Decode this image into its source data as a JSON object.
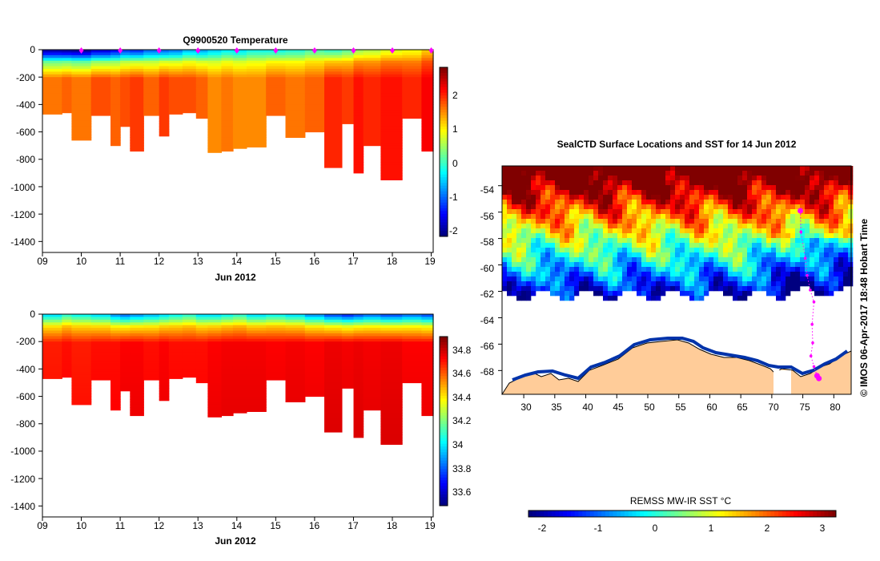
{
  "chart_data": [
    {
      "type": "heatmap",
      "title": "Q9900520  Temperature",
      "xlabel": "Jun 2012",
      "x_ticks": [
        "09",
        "10",
        "11",
        "12",
        "13",
        "14",
        "15",
        "16",
        "17",
        "18",
        "19"
      ],
      "y_ticks": [
        "0",
        "-200",
        "-400",
        "-600",
        "-800",
        "-1000",
        "-1200",
        "-1400"
      ],
      "ylim": [
        -1480,
        0
      ],
      "xlim": [
        9,
        19.05
      ],
      "colorbar_ticks": [
        "-2",
        "-1",
        "0",
        "1",
        "2"
      ],
      "colorbar_range": [
        -2.2,
        2.8
      ],
      "profile_times": [
        9.0,
        9.5,
        9.75,
        10.25,
        10.75,
        11.0,
        11.25,
        11.6,
        12.0,
        12.25,
        12.6,
        12.95,
        13.25,
        13.6,
        13.9,
        14.25,
        14.75,
        15.25,
        15.75,
        16.25,
        16.7,
        17.0,
        17.25,
        17.7,
        18.25,
        18.75
      ],
      "profile_max_depth": [
        -470,
        -460,
        -660,
        -480,
        -700,
        -560,
        -740,
        -480,
        -630,
        -470,
        -460,
        -500,
        -750,
        -740,
        -720,
        -710,
        -480,
        -640,
        -600,
        -860,
        -540,
        -900,
        -700,
        -950,
        -500,
        -740
      ],
      "surface_temp": [
        -1.9,
        -1.95,
        -2.0,
        -1.7,
        -1.5,
        -1.2,
        -1.3,
        -1.0,
        -1.0,
        -0.9,
        -0.6,
        -0.7,
        -0.5,
        -0.3,
        -0.4,
        -0.2,
        -0.2,
        -0.1,
        0.1,
        0.0,
        0.2,
        0.5,
        0.6,
        0.8,
        0.9,
        1.2
      ],
      "deep_temp": [
        1.6,
        1.7,
        1.6,
        1.8,
        1.7,
        1.8,
        1.9,
        1.7,
        1.9,
        1.8,
        1.8,
        1.7,
        1.5,
        1.6,
        1.5,
        1.5,
        1.7,
        1.6,
        1.7,
        2.0,
        1.9,
        2.1,
        2.0,
        2.1,
        2.0,
        2.2
      ],
      "markers": [
        10.0,
        11.0,
        12.0,
        13.0,
        14.0,
        15.0,
        16.0,
        17.0,
        18.0,
        19.0
      ]
    },
    {
      "type": "heatmap",
      "title": "",
      "xlabel": "Jun 2012",
      "x_ticks": [
        "09",
        "10",
        "11",
        "12",
        "13",
        "14",
        "15",
        "16",
        "17",
        "18",
        "19"
      ],
      "y_ticks": [
        "0",
        "-200",
        "-400",
        "-600",
        "-800",
        "-1000",
        "-1200",
        "-1400"
      ],
      "ylim": [
        -1480,
        0
      ],
      "xlim": [
        9,
        19.05
      ],
      "colorbar_ticks": [
        "34.8",
        "34.6",
        "34.4",
        "34.2",
        "34",
        "33.8",
        "33.6"
      ],
      "colorbar_range": [
        33.5,
        34.9
      ],
      "surface_salinity": [
        34.0,
        34.1,
        34.05,
        34.0,
        33.9,
        33.85,
        33.9,
        33.95,
        34.0,
        34.05,
        34.1,
        34.0,
        34.0,
        34.05,
        34.1,
        34.0,
        34.05,
        34.0,
        33.9,
        33.8,
        33.75,
        33.8,
        33.85,
        33.8,
        33.85,
        33.8
      ],
      "deep_salinity": [
        34.68,
        34.7,
        34.68,
        34.7,
        34.7,
        34.72,
        34.72,
        34.7,
        34.72,
        34.7,
        34.7,
        34.7,
        34.72,
        34.73,
        34.73,
        34.73,
        34.72,
        34.73,
        34.72,
        34.74,
        34.73,
        34.74,
        34.73,
        34.74,
        34.72,
        34.72
      ]
    },
    {
      "type": "heatmap",
      "title": "SealCTD Surface Locations and SST for 14 Jun 2012",
      "x_ticks": [
        "30",
        "35",
        "40",
        "45",
        "50",
        "55",
        "60",
        "65",
        "70",
        "75",
        "80"
      ],
      "y_ticks": [
        "-54",
        "-56",
        "-58",
        "-60",
        "-62",
        "-64",
        "-66",
        "-68"
      ],
      "xlim": [
        26.5,
        82.8
      ],
      "ylim": [
        -69.8,
        -52.5
      ],
      "colorbar_label": "REMSS MW-IR SST °C",
      "colorbar_ticks": [
        "-2",
        "-1",
        "0",
        "1",
        "2",
        "3"
      ],
      "colorbar_range": [
        -2.3,
        3.3
      ],
      "track": [
        [
          74.6,
          -55.9
        ],
        [
          74.7,
          -57.5
        ],
        [
          75.4,
          -59.5
        ],
        [
          75.7,
          -60.8
        ],
        [
          76.2,
          -61.9
        ],
        [
          76.8,
          -62.8
        ],
        [
          76.5,
          -64.5
        ],
        [
          76.6,
          -65.9
        ],
        [
          76.3,
          -66.9
        ],
        [
          76.8,
          -67.7
        ],
        [
          77.3,
          -68.4
        ],
        [
          77.6,
          -68.6
        ]
      ]
    }
  ],
  "side_text": "© IMOS 06-Apr-2017 18:48 Hobart Time",
  "colors": {
    "marker": "#ff00ff",
    "land": "#ffcc99",
    "bg": "#ffffff"
  }
}
